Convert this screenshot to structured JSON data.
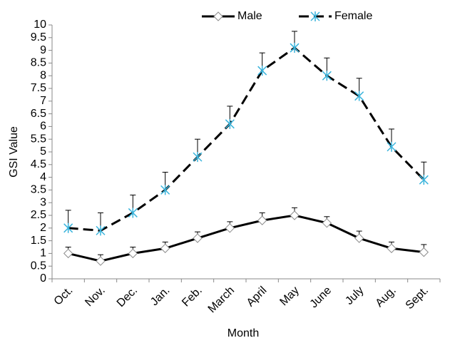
{
  "chart_data": {
    "type": "line",
    "x_label": "Month",
    "y_label": "GSI Value",
    "categories": [
      "Oct.",
      "Nov.",
      "Dec.",
      "Jan.",
      "Feb.",
      "March",
      "April",
      "May",
      "June",
      "July",
      "Aug.",
      "Sept."
    ],
    "series": [
      {
        "name": "Male",
        "color": "#000000",
        "marker": "diamond",
        "line_style": "solid",
        "values": [
          1.0,
          0.7,
          1.0,
          1.2,
          1.6,
          2.0,
          2.3,
          2.5,
          2.2,
          1.6,
          1.2,
          1.05
        ],
        "errors": [
          0.25,
          0.25,
          0.25,
          0.25,
          0.25,
          0.25,
          0.3,
          0.3,
          0.25,
          0.28,
          0.25,
          0.3
        ]
      },
      {
        "name": "Female",
        "color": "#000000",
        "marker": "asterisk",
        "line_style": "dashed",
        "values": [
          2.0,
          1.9,
          2.6,
          3.5,
          4.8,
          6.1,
          8.2,
          9.1,
          8.0,
          7.2,
          5.2,
          3.9
        ],
        "errors": [
          0.7,
          0.7,
          0.7,
          0.7,
          0.7,
          0.7,
          0.7,
          0.65,
          0.7,
          0.7,
          0.7,
          0.7
        ]
      }
    ],
    "ylim": [
      0,
      10
    ],
    "yticks": [
      0,
      0.5,
      1,
      1.5,
      2,
      2.5,
      3,
      3.5,
      4,
      4.5,
      5,
      5.5,
      6,
      6.5,
      7,
      7.5,
      8,
      8.5,
      9,
      9.5,
      10
    ],
    "grid": false,
    "legend": "top"
  }
}
